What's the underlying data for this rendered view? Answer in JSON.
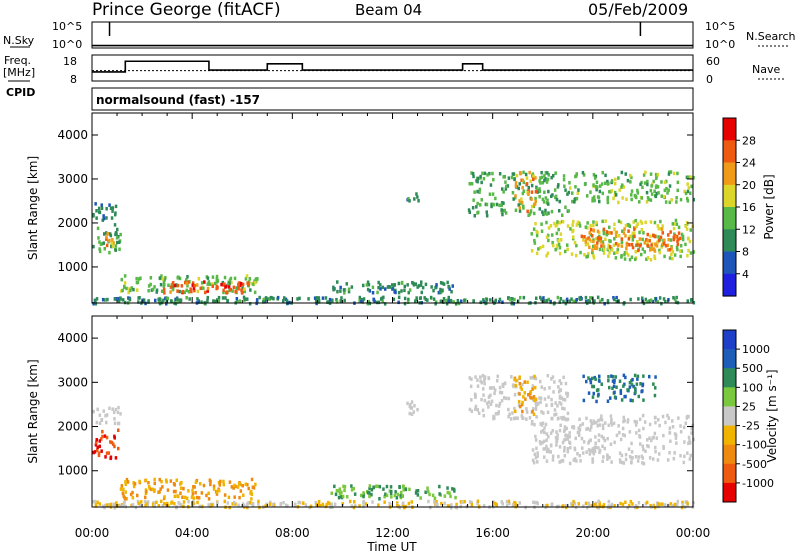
{
  "header": {
    "station": "Prince George (fitACF)",
    "beam": "Beam 04",
    "date": "05/Feb/2009"
  },
  "labels": {
    "nsky": "N.Sky",
    "nsearch": "N.Search",
    "freq_line1": "Freq.",
    "freq_line2": "[MHz]",
    "cpid": "CPID",
    "nave": "Nave",
    "cpid_text": "normalsound (fast) -157",
    "noise_tick_top": "10^5",
    "noise_tick_bottom": "10^0",
    "freq_tick_top": "18",
    "freq_tick_bottom": "8",
    "nave_tick_top": "60",
    "nave_tick_bottom": "0"
  },
  "chart_data": [
    {
      "type": "line",
      "panel": "noise",
      "ylim_left": [
        1,
        100000
      ],
      "series": [
        {
          "name": "N.Sky",
          "x": [
            0,
            1,
            2,
            4,
            6,
            8,
            10,
            12,
            14,
            16,
            18,
            20,
            22,
            24
          ],
          "y": [
            3,
            3,
            3,
            3,
            3,
            3,
            3,
            3,
            3,
            3,
            3,
            3,
            3,
            3
          ]
        },
        {
          "name": "N.Search",
          "x": [
            0,
            24
          ],
          "y": [
            3,
            3
          ]
        }
      ]
    },
    {
      "type": "line",
      "panel": "frequency-nave",
      "ylim_left": [
        8,
        18
      ],
      "ylim_right": [
        0,
        60
      ],
      "series": [
        {
          "name": "Freq.",
          "x": [
            0,
            1.33,
            1.33,
            4.67,
            4.67,
            7,
            7,
            8.4,
            8.4,
            14.8,
            14.8,
            15.6,
            15.6,
            24
          ],
          "y": [
            11.5,
            11.5,
            15.6,
            15.6,
            12.2,
            12.2,
            14.6,
            14.6,
            12.2,
            12.2,
            14.6,
            14.6,
            12.2,
            12.2
          ]
        },
        {
          "name": "Nave",
          "x": [
            0,
            24
          ],
          "y": [
            24,
            24
          ]
        }
      ]
    },
    {
      "type": "heatmap",
      "panel": "power",
      "title": "Power [dB]",
      "xlabel": "Time UT",
      "ylabel": "Slant Range [km]",
      "xlim": [
        0,
        24
      ],
      "ylim": [
        180,
        4500
      ],
      "x_ticks": [
        "00:00",
        "04:00",
        "08:00",
        "12:00",
        "16:00",
        "20:00",
        "00:00"
      ],
      "y_ticks": [
        1000,
        2000,
        3000,
        4000
      ],
      "colorbar_ticks": [
        "4",
        "8",
        "12",
        "16",
        "20",
        "24",
        "28"
      ],
      "colorbar_colors": [
        "#1f1fe0",
        "#1e55b8",
        "#2e8b57",
        "#58b848",
        "#dcd62a",
        "#f09a1a",
        "#ee5a10",
        "#e60000"
      ],
      "regions": [
        {
          "t0": 0.0,
          "t1": 1.1,
          "r0": 1300,
          "r1": 2000,
          "v": 12
        },
        {
          "t0": 0.0,
          "t1": 1.1,
          "r0": 2100,
          "r1": 2500,
          "v": 9
        },
        {
          "t0": 0.4,
          "t1": 0.9,
          "r0": 1500,
          "r1": 1800,
          "v": 22
        },
        {
          "t0": 1.1,
          "t1": 6.6,
          "r0": 450,
          "r1": 850,
          "v": 14
        },
        {
          "t0": 2.8,
          "t1": 6.2,
          "r0": 450,
          "r1": 700,
          "v": 26
        },
        {
          "t0": 0.0,
          "t1": 24.0,
          "r0": 200,
          "r1": 350,
          "v": 10
        },
        {
          "t0": 9.5,
          "t1": 14.5,
          "r0": 450,
          "r1": 700,
          "v": 10
        },
        {
          "t0": 12.5,
          "t1": 13.0,
          "r0": 2500,
          "r1": 2700,
          "v": 10
        },
        {
          "t0": 15.0,
          "t1": 19.0,
          "r0": 2200,
          "r1": 3200,
          "v": 12
        },
        {
          "t0": 16.8,
          "t1": 17.7,
          "r0": 2300,
          "r1": 3200,
          "v": 22
        },
        {
          "t0": 17.5,
          "t1": 24.0,
          "r0": 1200,
          "r1": 2100,
          "v": 16
        },
        {
          "t0": 19.5,
          "t1": 23.5,
          "r0": 1400,
          "r1": 1900,
          "v": 24
        },
        {
          "t0": 19.0,
          "t1": 24.0,
          "r0": 2500,
          "r1": 3200,
          "v": 14
        }
      ]
    },
    {
      "type": "heatmap",
      "panel": "velocity",
      "xlabel": "Time UT",
      "ylabel": "Slant Range [km]",
      "xlim": [
        0,
        24
      ],
      "ylim": [
        180,
        4500
      ],
      "x_ticks": [
        "00:00",
        "04:00",
        "08:00",
        "12:00",
        "16:00",
        "20:00",
        "00:00"
      ],
      "y_ticks": [
        1000,
        2000,
        3000,
        4000
      ],
      "colorbar_ticks": [
        "1000",
        "500",
        "100",
        "25",
        "-25",
        "-100",
        "-500",
        "-1000"
      ],
      "colorbar_colors": [
        "#1e3fc8",
        "#1e5db8",
        "#2e8b57",
        "#7ac83e",
        "#c8c8c8",
        "#f0b400",
        "#ee8a10",
        "#ee5a10",
        "#e60000"
      ],
      "regions": [
        {
          "t0": 0.0,
          "t1": 1.1,
          "r0": 2100,
          "r1": 2500,
          "v": 0
        },
        {
          "t0": 0.0,
          "t1": 1.0,
          "r0": 1300,
          "r1": 2000,
          "v": -1000
        },
        {
          "t0": 1.1,
          "t1": 6.6,
          "r0": 400,
          "r1": 850,
          "v": -100
        },
        {
          "t0": 0.0,
          "t1": 24.0,
          "r0": 200,
          "r1": 350,
          "v": -25
        },
        {
          "t0": 9.5,
          "t1": 14.5,
          "r0": 400,
          "r1": 700,
          "v": 100
        },
        {
          "t0": 12.4,
          "t1": 13.0,
          "r0": 2300,
          "r1": 2600,
          "v": 0
        },
        {
          "t0": 15.0,
          "t1": 19.0,
          "r0": 2200,
          "r1": 3200,
          "v": 0
        },
        {
          "t0": 16.8,
          "t1": 17.7,
          "r0": 2300,
          "r1": 3200,
          "v": -100
        },
        {
          "t0": 17.5,
          "t1": 24.0,
          "r0": 1200,
          "r1": 2300,
          "v": 0
        },
        {
          "t0": 19.5,
          "t1": 22.5,
          "r0": 2600,
          "r1": 3200,
          "v": 500
        }
      ]
    }
  ]
}
